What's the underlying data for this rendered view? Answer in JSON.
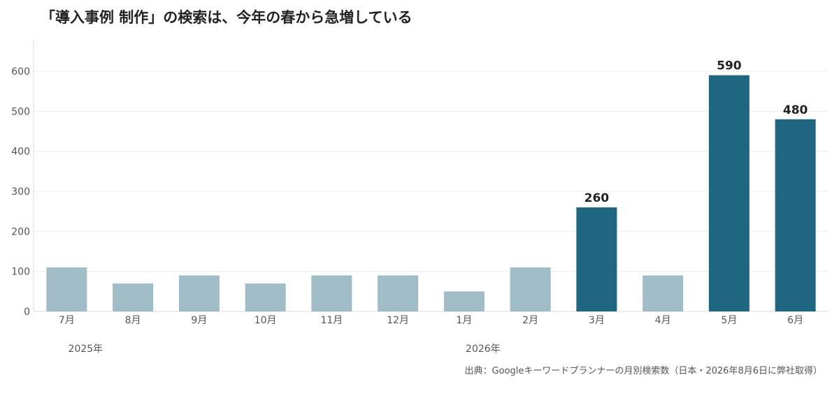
{
  "chart_data": {
    "type": "bar",
    "title": "「導入事例 制作」の検索は、今年の春から急増している",
    "categories": [
      "7月",
      "8月",
      "9月",
      "10月",
      "11月",
      "12月",
      "1月",
      "2月",
      "3月",
      "4月",
      "5月",
      "6月"
    ],
    "values": [
      110,
      70,
      90,
      70,
      90,
      90,
      50,
      110,
      260,
      90,
      590,
      480
    ],
    "highlight": [
      false,
      false,
      false,
      false,
      false,
      false,
      false,
      false,
      true,
      false,
      true,
      true
    ],
    "data_labels": [
      "",
      "",
      "",
      "",
      "",
      "",
      "",
      "",
      "260",
      "",
      "590",
      "480"
    ],
    "year_labels": [
      {
        "label": "2025年",
        "category_index": 0
      },
      {
        "label": "2026年",
        "category_index": 6
      }
    ],
    "yticks": [
      0,
      100,
      200,
      300,
      400,
      500,
      600
    ],
    "ylim": [
      0,
      600
    ],
    "grid": true,
    "colors": {
      "base": "#9fbcc7",
      "highlight": "#1f6780"
    },
    "source": "出典：Googleキーワードプランナーの月別検索数（日本・2026年8月6日に弊社取得）"
  }
}
